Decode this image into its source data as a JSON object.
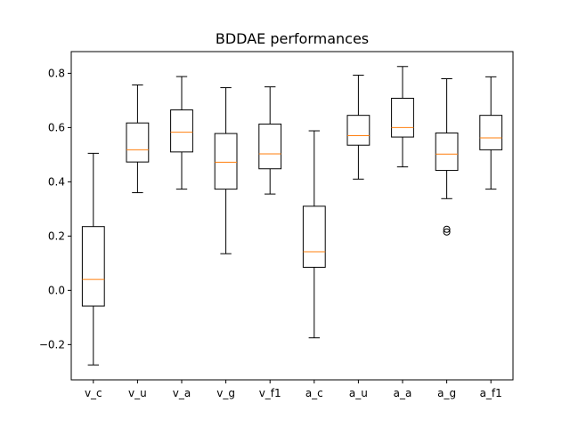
{
  "chart_data": {
    "type": "boxplot",
    "title": "BDDAE performances",
    "xlabel": "",
    "ylabel": "",
    "ylim": [
      -0.33,
      0.88
    ],
    "yticks": [
      -0.2,
      0.0,
      0.2,
      0.4,
      0.6,
      0.8
    ],
    "ytick_labels": [
      "−0.2",
      "0.0",
      "0.2",
      "0.4",
      "0.6",
      "0.8"
    ],
    "grid": false,
    "categories": [
      "v_c",
      "v_u",
      "v_a",
      "v_g",
      "v_f1",
      "a_c",
      "a_u",
      "a_a",
      "a_g",
      "a_f1"
    ],
    "boxes": [
      {
        "whisker_low": -0.275,
        "q1": -0.058,
        "median": 0.04,
        "q3": 0.235,
        "whisker_high": 0.505,
        "outliers": []
      },
      {
        "whisker_low": 0.36,
        "q1": 0.473,
        "median": 0.518,
        "q3": 0.617,
        "whisker_high": 0.757,
        "outliers": []
      },
      {
        "whisker_low": 0.373,
        "q1": 0.51,
        "median": 0.583,
        "q3": 0.665,
        "whisker_high": 0.788,
        "outliers": []
      },
      {
        "whisker_low": 0.135,
        "q1": 0.373,
        "median": 0.472,
        "q3": 0.578,
        "whisker_high": 0.747,
        "outliers": []
      },
      {
        "whisker_low": 0.355,
        "q1": 0.448,
        "median": 0.503,
        "q3": 0.613,
        "whisker_high": 0.75,
        "outliers": []
      },
      {
        "whisker_low": -0.175,
        "q1": 0.085,
        "median": 0.142,
        "q3": 0.31,
        "whisker_high": 0.588,
        "outliers": []
      },
      {
        "whisker_low": 0.41,
        "q1": 0.535,
        "median": 0.57,
        "q3": 0.645,
        "whisker_high": 0.793,
        "outliers": []
      },
      {
        "whisker_low": 0.455,
        "q1": 0.565,
        "median": 0.6,
        "q3": 0.708,
        "whisker_high": 0.825,
        "outliers": []
      },
      {
        "whisker_low": 0.338,
        "q1": 0.442,
        "median": 0.502,
        "q3": 0.58,
        "whisker_high": 0.78,
        "outliers": [
          0.215,
          0.225
        ]
      },
      {
        "whisker_low": 0.373,
        "q1": 0.518,
        "median": 0.562,
        "q3": 0.645,
        "whisker_high": 0.787,
        "outliers": []
      }
    ],
    "colors": {
      "box": "#000000",
      "median": "#ff7f0e",
      "background": "#ffffff"
    }
  }
}
